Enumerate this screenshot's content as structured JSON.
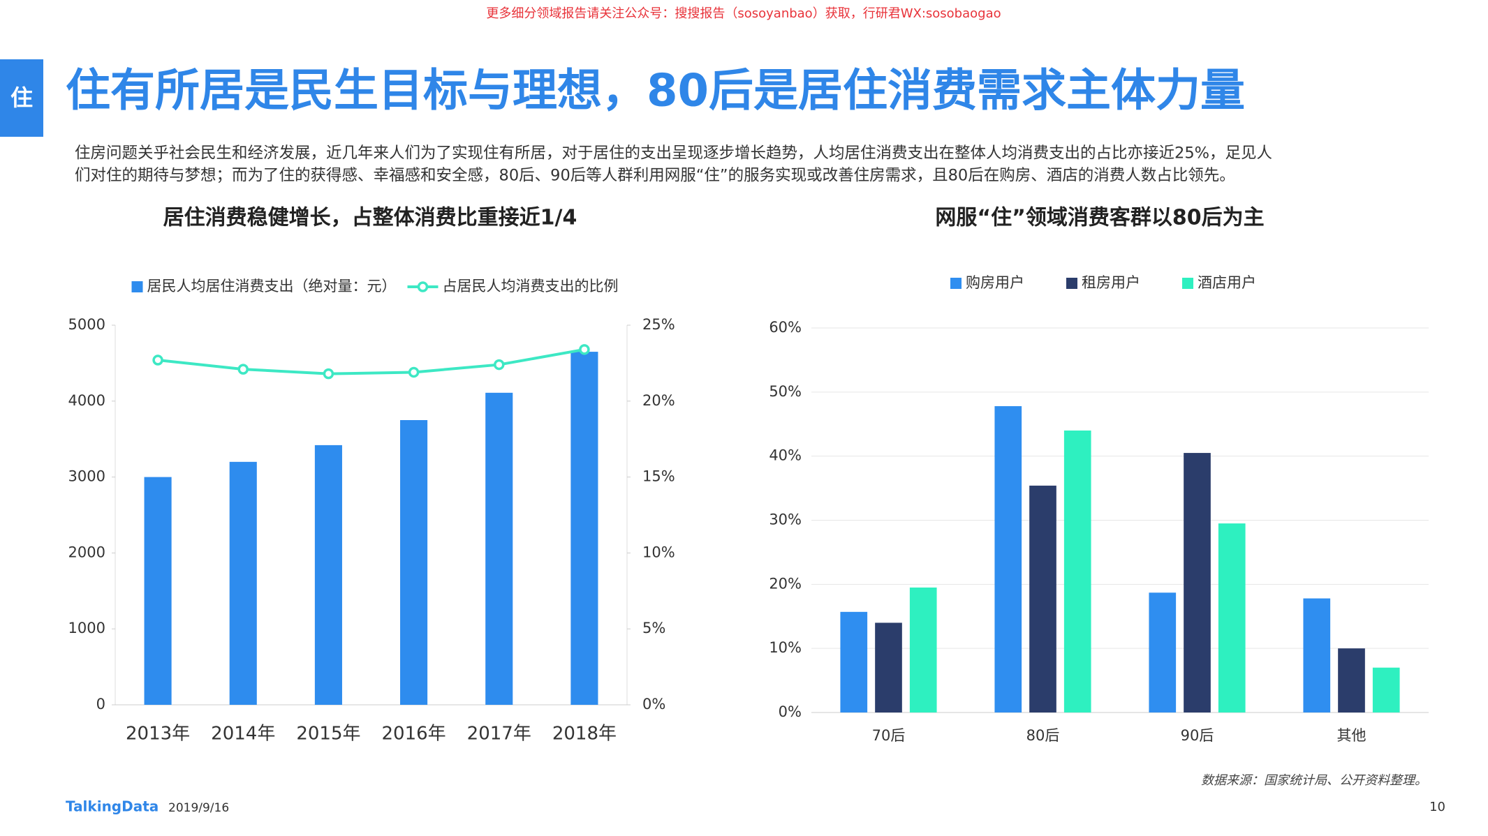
{
  "watermark": "更多细分领域报告请关注公众号：搜搜报告（sosoyanbao）获取，行研君WX:sosobaogao",
  "header": {
    "icon": "住",
    "title": "住有所居是民生目标与理想，80后是居住消费需求主体力量"
  },
  "body": {
    "lines": [
      "住房问题关乎社会民生和经济发展，近几年来人们为了实现住有所居，对于居住的支出呈现逐步增长趋势，人均居住消费支出在整体人均消费支出的占比亦接近25%，足见人",
      "们对住的期待与梦想；而为了住的获得感、幸福感和安全感，80后、90后等人群利用网服“住”的服务实现或改善住房需求，且80后在购房、酒店的消费人数占比领先。"
    ]
  },
  "chart_data": [
    {
      "type": "bar",
      "title": "居住消费稳健增长，占整体消费比重接近1/4",
      "categories": [
        "2013年",
        "2014年",
        "2015年",
        "2016年",
        "2017年",
        "2018年"
      ],
      "series": [
        {
          "name": "居民人均居住消费支出（绝对量：元）",
          "color": "#2e8cee",
          "values": [
            3000,
            3200,
            3420,
            3750,
            4110,
            4650
          ]
        },
        {
          "name": "占居民人均消费支出的比例",
          "color": "#3de8c4",
          "type": "line",
          "axis": "y2",
          "values": [
            22.7,
            22.1,
            21.8,
            21.9,
            22.4,
            23.4
          ]
        }
      ],
      "ylim": [
        0,
        5000
      ],
      "yticks": [
        0,
        1000,
        2000,
        3000,
        4000,
        5000
      ],
      "y2lim": [
        0,
        25
      ],
      "y2ticks": [
        {
          "value": 0,
          "label": "0%"
        },
        {
          "value": 5,
          "label": "5%"
        },
        {
          "value": 10,
          "label": "10%"
        },
        {
          "value": 15,
          "label": "15%"
        },
        {
          "value": 20,
          "label": "20%"
        },
        {
          "value": 25,
          "label": "25%"
        }
      ],
      "grid": false
    },
    {
      "type": "bar",
      "title": "网服“住”领域消费客群以80后为主",
      "categories": [
        "70后",
        "80后",
        "90后",
        "其他"
      ],
      "series": [
        {
          "name": "购房用户",
          "color": "#2f8ef0",
          "values": [
            15.7,
            47.8,
            18.7,
            17.8
          ]
        },
        {
          "name": "租房用户",
          "color": "#2b3d6b",
          "values": [
            14,
            35.4,
            40.5,
            10
          ]
        },
        {
          "name": "酒店用户",
          "color": "#2ef0c0",
          "values": [
            19.5,
            44,
            29.5,
            7
          ]
        }
      ],
      "ylim": [
        0,
        60
      ],
      "yticks": [
        {
          "value": 0,
          "label": "0%"
        },
        {
          "value": 10,
          "label": "10%"
        },
        {
          "value": 20,
          "label": "20%"
        },
        {
          "value": 30,
          "label": "30%"
        },
        {
          "value": 40,
          "label": "40%"
        },
        {
          "value": 50,
          "label": "50%"
        },
        {
          "value": 60,
          "label": "60%"
        }
      ],
      "grid": true
    }
  ],
  "footer": {
    "source": "数据来源：国家统计局、公开资料整理。",
    "brand": "TalkingData",
    "date": "2019/9/16",
    "page": "10"
  }
}
